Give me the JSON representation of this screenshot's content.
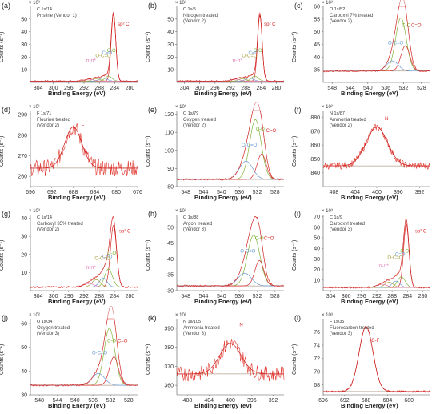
{
  "chart_data": [
    {
      "panel": "(a)",
      "type": "line",
      "code": "C 1s/14",
      "multiplier": "× 10³",
      "line1": "Pristine (Vendor 1)",
      "line2": "",
      "xlabel": "Binding Energy (eV)",
      "ylabel": "Counts (s⁻¹)",
      "xlim": [
        306,
        278
      ],
      "ylim": [
        0,
        60
      ],
      "xticks": [
        304,
        300,
        296,
        292,
        288,
        284,
        280
      ],
      "yticks": [
        10,
        20,
        30,
        40,
        50
      ],
      "peaks": [
        {
          "label": "sp² C",
          "center": 284.3,
          "height": 53,
          "width": 0.6,
          "color": "#d62828"
        },
        {
          "label": "C-O",
          "center": 285.6,
          "height": 4,
          "width": 0.9,
          "color": "#7fb239"
        },
        {
          "label": "C=O",
          "center": 287.0,
          "height": 2.5,
          "width": 1.0,
          "color": "#6a9ad4"
        },
        {
          "label": "O-C=O",
          "center": 288.8,
          "height": 2,
          "width": 1.0,
          "color": "#a8a040"
        },
        {
          "label": "π-π*",
          "center": 290.7,
          "height": 1.5,
          "width": 1.2,
          "color": "#e07ab5"
        }
      ],
      "baseline": 1,
      "labels": [
        {
          "text": "sp² C",
          "x": 283.2,
          "y": 45,
          "color": "#d62828"
        },
        {
          "text": "C-O",
          "x": 286.0,
          "y": 24,
          "color": "#7fb239"
        },
        {
          "text": "C=O",
          "x": 287.3,
          "y": 22,
          "color": "#6a9ad4"
        },
        {
          "text": "O-C=O",
          "x": 289.0,
          "y": 20,
          "color": "#a8a040"
        },
        {
          "text": "π-π*",
          "x": 291.5,
          "y": 16,
          "color": "#e07ab5"
        }
      ]
    },
    {
      "panel": "(b)",
      "type": "line",
      "code": "C 1s/5",
      "multiplier": "× 10³",
      "line1": "Nitrogen treated",
      "line2": "(Vendor 2)",
      "xlabel": "Binding Energy (eV)",
      "ylabel": "Counts (s⁻¹)",
      "xlim": [
        306,
        278
      ],
      "ylim": [
        0,
        60
      ],
      "xticks": [
        304,
        300,
        296,
        292,
        288,
        284,
        280
      ],
      "yticks": [
        10,
        20,
        30,
        40,
        50
      ],
      "peaks": [
        {
          "label": "sp² C",
          "center": 284.3,
          "height": 52,
          "width": 0.6,
          "color": "#d62828"
        },
        {
          "label": "C-O",
          "center": 285.6,
          "height": 4,
          "width": 0.9,
          "color": "#7fb239"
        },
        {
          "label": "C=O",
          "center": 287.0,
          "height": 2.5,
          "width": 1.0,
          "color": "#6a9ad4"
        },
        {
          "label": "O-C=O",
          "center": 288.8,
          "height": 2,
          "width": 1.0,
          "color": "#a8a040"
        },
        {
          "label": "π-π*",
          "center": 290.7,
          "height": 1.5,
          "width": 1.2,
          "color": "#e07ab5"
        }
      ],
      "baseline": 1,
      "labels": [
        {
          "text": "sp² C",
          "x": 283.2,
          "y": 45,
          "color": "#d62828"
        },
        {
          "text": "C-O",
          "x": 286.0,
          "y": 24,
          "color": "#7fb239"
        },
        {
          "text": "C=O",
          "x": 287.3,
          "y": 22,
          "color": "#6a9ad4"
        },
        {
          "text": "O-C=O",
          "x": 289.0,
          "y": 20,
          "color": "#a8a040"
        },
        {
          "text": "π-π*",
          "x": 291.5,
          "y": 16,
          "color": "#e07ab5"
        }
      ]
    },
    {
      "panel": "(c)",
      "type": "line",
      "code": "O 1s/52",
      "multiplier": "× 10²",
      "line1": "Carboxyl 7% treated",
      "line2": "(Vendor 2)",
      "xlabel": "Binding Energy (eV)",
      "ylabel": "Counts (s⁻¹)",
      "xlim": [
        550,
        526
      ],
      "ylim": [
        30,
        60
      ],
      "xticks": [
        548,
        544,
        540,
        536,
        532,
        528
      ],
      "yticks": [
        35,
        40,
        45,
        50,
        55,
        60
      ],
      "peaks": [
        {
          "label": "C-O",
          "center": 532.6,
          "height": 21,
          "width": 1.2,
          "color": "#7fb239"
        },
        {
          "label": "C=O",
          "center": 531.6,
          "height": 10,
          "width": 1.0,
          "color": "#d62828"
        },
        {
          "label": "O-C=O",
          "center": 534.5,
          "height": 4,
          "width": 1.3,
          "color": "#6a9ad4"
        }
      ],
      "baseline": 34.5,
      "labels": [
        {
          "text": "C=O",
          "x": 530.3,
          "y": 52,
          "color": "#d62828"
        },
        {
          "text": "C-O",
          "x": 532.4,
          "y": 52,
          "color": "#7fb239"
        },
        {
          "text": "O-C=O",
          "x": 535.5,
          "y": 45,
          "color": "#6a9ad4"
        }
      ]
    },
    {
      "panel": "(d)",
      "type": "line",
      "code": "F 1s/71",
      "multiplier": "× 10¹",
      "line1": "Flourine treated",
      "line2": "(Vendor 2)",
      "xlabel": "Binding Energy (eV)",
      "ylabel": "Counts (s⁻¹)",
      "xlim": [
        696,
        676
      ],
      "ylim": [
        255,
        292
      ],
      "xticks": [
        696,
        692,
        688,
        684,
        680,
        676
      ],
      "yticks": [
        260,
        270,
        280,
        290
      ],
      "peaks": [
        {
          "label": "F",
          "center": 688.0,
          "height": 20,
          "width": 1.6,
          "color": "#d62828"
        }
      ],
      "baseline": 264,
      "noise": 4,
      "labels": [
        {
          "text": "F",
          "x": 686.5,
          "y": 283,
          "color": "#d62828"
        }
      ]
    },
    {
      "panel": "(e)",
      "type": "line",
      "code": "O 1s/79",
      "multiplier": "× 10¹",
      "line1": "Oxygen treated",
      "line2": "(Vendor 2)",
      "xlabel": "Binding Energy (eV)",
      "ylabel": "Counts (s⁻¹)",
      "xlim": [
        550,
        526
      ],
      "ylim": [
        80,
        122
      ],
      "xticks": [
        548,
        544,
        540,
        536,
        532,
        528
      ],
      "yticks": [
        80,
        90,
        100,
        110,
        120
      ],
      "peaks": [
        {
          "label": "C-O",
          "center": 532.4,
          "height": 33,
          "width": 1.3,
          "color": "#7fb239"
        },
        {
          "label": "C=O",
          "center": 531.0,
          "height": 14,
          "width": 1.0,
          "color": "#d62828"
        },
        {
          "label": "O-C=O",
          "center": 534.5,
          "height": 10,
          "width": 1.5,
          "color": "#6a9ad4"
        }
      ],
      "baseline": 84,
      "labels": [
        {
          "text": "C=O",
          "x": 530.0,
          "y": 110,
          "color": "#d62828"
        },
        {
          "text": "C-O",
          "x": 532.3,
          "y": 111,
          "color": "#7fb239"
        },
        {
          "text": "O-C=O",
          "x": 535.5,
          "y": 102,
          "color": "#6a9ad4"
        }
      ]
    },
    {
      "panel": "(f)",
      "type": "line",
      "code": "N 1s/87",
      "multiplier": "× 10²",
      "line1": "Ammonia treated",
      "line2": "(Vendor 2)",
      "xlabel": "Binding Energy (eV)",
      "ylabel": "Counts (s⁻¹)",
      "xlim": [
        410,
        390
      ],
      "ylim": [
        830,
        885
      ],
      "xticks": [
        408,
        404,
        400,
        396,
        392
      ],
      "yticks": [
        840,
        850,
        860,
        870,
        880
      ],
      "peaks": [
        {
          "label": "N",
          "center": 400.0,
          "height": 28,
          "width": 2.0,
          "color": "#d62828"
        }
      ],
      "baseline": 845,
      "noise": 2.5,
      "labels": [
        {
          "text": "N",
          "x": 398.5,
          "y": 878,
          "color": "#d62828"
        }
      ]
    },
    {
      "panel": "(g)",
      "type": "line",
      "code": "C 1s/14",
      "multiplier": "× 10³",
      "line1": "Carboxyl 35% treated",
      "line2": "(Vendor 2)",
      "xlabel": "Binding Energy (eV)",
      "ylabel": "Counts (s⁻¹)",
      "xlim": [
        306,
        278
      ],
      "ylim": [
        0,
        42
      ],
      "xticks": [
        304,
        300,
        296,
        292,
        288,
        284,
        280
      ],
      "yticks": [
        10,
        20,
        30,
        40
      ],
      "peaks": [
        {
          "label": "sp² C",
          "center": 284.3,
          "height": 34,
          "width": 0.8,
          "color": "#d62828"
        },
        {
          "label": "C-O",
          "center": 285.6,
          "height": 10,
          "width": 1.0,
          "color": "#7fb239"
        },
        {
          "label": "C=O",
          "center": 287.0,
          "height": 5,
          "width": 1.0,
          "color": "#6a9ad4"
        },
        {
          "label": "O-C=O",
          "center": 288.8,
          "height": 4,
          "width": 1.1,
          "color": "#a8a040"
        },
        {
          "label": "π-π*",
          "center": 290.7,
          "height": 2,
          "width": 1.3,
          "color": "#e07ab5"
        }
      ],
      "baseline": 2,
      "labels": [
        {
          "text": "sp² C",
          "x": 282.8,
          "y": 32,
          "color": "#d62828"
        },
        {
          "text": "C-O",
          "x": 285.9,
          "y": 20,
          "color": "#7fb239"
        },
        {
          "text": "C=O",
          "x": 287.2,
          "y": 18,
          "color": "#6a9ad4"
        },
        {
          "text": "O-C=O",
          "x": 289.2,
          "y": 17,
          "color": "#a8a040"
        },
        {
          "text": "π-π*",
          "x": 291.5,
          "y": 12,
          "color": "#e07ab5"
        }
      ]
    },
    {
      "panel": "(h)",
      "type": "line",
      "code": "O 1s/88",
      "multiplier": "× 10²",
      "line1": "Argon treated",
      "line2": "(Vendor 3)",
      "xlabel": "Binding Energy (eV)",
      "ylabel": "Counts (s⁻¹)",
      "xlim": [
        550,
        526
      ],
      "ylim": [
        30,
        54
      ],
      "xticks": [
        548,
        544,
        540,
        536,
        532,
        528
      ],
      "yticks": [
        30,
        35,
        40,
        45,
        50
      ],
      "peaks": [
        {
          "label": "C-O",
          "center": 532.8,
          "height": 16,
          "width": 1.4,
          "color": "#7fb239"
        },
        {
          "label": "C=O",
          "center": 531.5,
          "height": 8,
          "width": 1.0,
          "color": "#d62828"
        },
        {
          "label": "O-C=O",
          "center": 534.8,
          "height": 4,
          "width": 1.5,
          "color": "#6a9ad4"
        }
      ],
      "baseline": 31.5,
      "labels": [
        {
          "text": "C=O",
          "x": 530.5,
          "y": 46,
          "color": "#d62828"
        },
        {
          "text": "C-O",
          "x": 532.5,
          "y": 46,
          "color": "#7fb239"
        },
        {
          "text": "O-C=O",
          "x": 535.8,
          "y": 42,
          "color": "#6a9ad4"
        }
      ]
    },
    {
      "panel": "(i)",
      "type": "line",
      "code": "C 1s/9",
      "multiplier": "× 10³",
      "line1": "Carboxyl treated",
      "line2": "(Vendor 3)",
      "xlabel": "Binding Energy (eV)",
      "ylabel": "Counts (s⁻¹)",
      "xlim": [
        306,
        278
      ],
      "ylim": [
        0,
        72
      ],
      "xticks": [
        304,
        300,
        296,
        292,
        288,
        284,
        280
      ],
      "yticks": [
        10,
        20,
        30,
        40,
        50,
        60,
        70
      ],
      "peaks": [
        {
          "label": "sp² C",
          "center": 284.3,
          "height": 60,
          "width": 0.7,
          "color": "#d62828"
        },
        {
          "label": "C-O",
          "center": 285.6,
          "height": 10,
          "width": 1.0,
          "color": "#7fb239"
        },
        {
          "label": "C=O",
          "center": 287.0,
          "height": 6,
          "width": 1.0,
          "color": "#6a9ad4"
        },
        {
          "label": "O-C=O",
          "center": 288.8,
          "height": 5,
          "width": 1.1,
          "color": "#a8a040"
        },
        {
          "label": "π-π*",
          "center": 290.7,
          "height": 3,
          "width": 1.4,
          "color": "#e07ab5"
        }
      ],
      "baseline": 3,
      "labels": [
        {
          "text": "sp² C",
          "x": 282.0,
          "y": 55,
          "color": "#d62828"
        },
        {
          "text": "C-O",
          "x": 285.9,
          "y": 36,
          "color": "#7fb239"
        },
        {
          "text": "C=O",
          "x": 287.2,
          "y": 33,
          "color": "#6a9ad4"
        },
        {
          "text": "O-C=O",
          "x": 289.2,
          "y": 30,
          "color": "#a8a040"
        },
        {
          "text": "π-π*",
          "x": 291.5,
          "y": 22,
          "color": "#e07ab5"
        }
      ]
    },
    {
      "panel": "(j)",
      "type": "line",
      "code": "O 1s/34",
      "multiplier": "× 10²",
      "line1": "Oxygen treated",
      "line2": "(Vendor 3)",
      "xlabel": "Binding Energy (eV)",
      "ylabel": "Counts (s⁻¹)",
      "xlim": [
        550,
        526
      ],
      "ylim": [
        30,
        62
      ],
      "xticks": [
        548,
        544,
        540,
        536,
        532,
        528
      ],
      "yticks": [
        30,
        40,
        50,
        60
      ],
      "peaks": [
        {
          "label": "C-O",
          "center": 532.3,
          "height": 24,
          "width": 1.2,
          "color": "#7fb239"
        },
        {
          "label": "C=O",
          "center": 531.3,
          "height": 12,
          "width": 1.0,
          "color": "#d62828"
        },
        {
          "label": "O-C=O",
          "center": 534.8,
          "height": 5,
          "width": 1.4,
          "color": "#6a9ad4"
        }
      ],
      "baseline": 34,
      "labels": [
        {
          "text": "C=O",
          "x": 530.5,
          "y": 52,
          "color": "#d62828"
        },
        {
          "text": "C-O",
          "x": 532.8,
          "y": 52,
          "color": "#7fb239"
        },
        {
          "text": "O-C=O",
          "x": 536.2,
          "y": 47,
          "color": "#6a9ad4"
        }
      ]
    },
    {
      "panel": "(k)",
      "type": "line",
      "code": "N 1s/105",
      "multiplier": "× 10²",
      "line1": "Ammonia treated",
      "line2": "(Vendor 3)",
      "xlabel": "Binding Energy (eV)",
      "ylabel": "Counts (s⁻¹)",
      "xlim": [
        410,
        390
      ],
      "ylim": [
        355,
        395
      ],
      "xticks": [
        408,
        404,
        400,
        396,
        392
      ],
      "yticks": [
        360,
        370,
        380,
        390
      ],
      "peaks": [
        {
          "label": "N",
          "center": 400.0,
          "height": 16,
          "width": 2.0,
          "color": "#d62828"
        }
      ],
      "baseline": 366,
      "noise": 4,
      "labels": [
        {
          "text": "N",
          "x": 398.3,
          "y": 391,
          "color": "#d62828"
        }
      ]
    },
    {
      "panel": "(l)",
      "type": "line",
      "code": "F 1s/35",
      "multiplier": "× 10³",
      "line1": "Fluorocarbon treated",
      "line2": "(Vendor 3)",
      "xlabel": "Binding Energy (eV)",
      "ylabel": "Counts (s⁻¹)",
      "xlim": [
        696,
        676
      ],
      "ylim": [
        66.5,
        78
      ],
      "xticks": [
        696,
        692,
        688,
        684,
        680
      ],
      "yticks": [
        68,
        70,
        72,
        74,
        76
      ],
      "peaks": [
        {
          "label": "C-F",
          "center": 688.0,
          "height": 9.8,
          "width": 1.3,
          "color": "#d62828"
        }
      ],
      "baseline": 67,
      "labels": [
        {
          "text": "C-F",
          "x": 687.0,
          "y": 74.5,
          "color": "#d62828"
        }
      ]
    }
  ]
}
